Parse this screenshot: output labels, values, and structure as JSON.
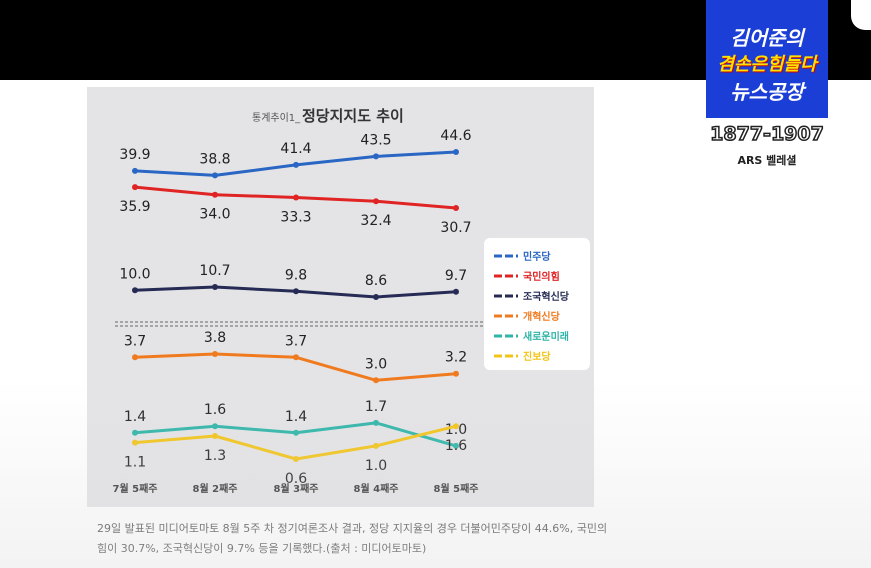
{
  "channel": {
    "logo_line1": "김어준의",
    "logo_line2": "겸손은힘들다",
    "logo_line3": "뉴스공장",
    "phone": "1877-1907",
    "ars": "ARS 벨레셜"
  },
  "chart_data": {
    "type": "line",
    "title_prefix": "통계추이1_",
    "title": "정당지지도 추이",
    "categories": [
      "7월 5째주",
      "8월 2째주",
      "8월 3째주",
      "8월 4째주",
      "8월 5째주"
    ],
    "grid": false,
    "legend_position": "right",
    "series": [
      {
        "name": "민주당",
        "color": "#2a66c4",
        "values": [
          39.9,
          38.8,
          41.4,
          43.5,
          44.6
        ],
        "labels": [
          "39.9",
          "38.8",
          "41.4",
          "43.5",
          "44.6"
        ],
        "label_pos": "above"
      },
      {
        "name": "국민의힘",
        "color": "#e02424",
        "values": [
          35.9,
          34.0,
          33.3,
          32.4,
          30.7
        ],
        "labels": [
          "35.9",
          "34.0",
          "33.3",
          "32.4",
          "30.7"
        ],
        "label_pos": "below"
      },
      {
        "name": "조국혁신당",
        "color": "#262b55",
        "values": [
          10.0,
          10.7,
          9.8,
          8.6,
          9.7
        ],
        "labels": [
          "10.0",
          "10.7",
          "9.8",
          "8.6",
          "9.7"
        ],
        "label_pos": "above"
      },
      {
        "name": "개혁신당",
        "color": "#f07b1f",
        "values": [
          3.7,
          3.8,
          3.7,
          3.0,
          3.2
        ],
        "labels": [
          "3.7",
          "3.8",
          "3.7",
          "3.0",
          "3.2"
        ],
        "label_pos": "above"
      },
      {
        "name": "새로운미래",
        "color": "#2fb5a8",
        "values": [
          1.4,
          1.6,
          1.4,
          1.7,
          1.0
        ],
        "labels": [
          "1.4",
          "1.6",
          "1.4",
          "1.7",
          "1.0"
        ],
        "label_pos": "above"
      },
      {
        "name": "진보당",
        "color": "#f2c418",
        "values": [
          1.1,
          1.3,
          0.6,
          1.0,
          1.6
        ],
        "labels": [
          "1.1",
          "1.3",
          "0.6",
          "1.0",
          "1.6"
        ],
        "label_pos": "below"
      }
    ]
  },
  "caption": "29일 발표된 미디어토마토 8월 5주 차 정기여론조사 결과, 정당 지지율의 경우 더불어민주당이 44.6%, 국민의힘이 30.7%, 조국혁신당이 9.7% 등을 기록했다.(출처 : 미디어토마토)"
}
